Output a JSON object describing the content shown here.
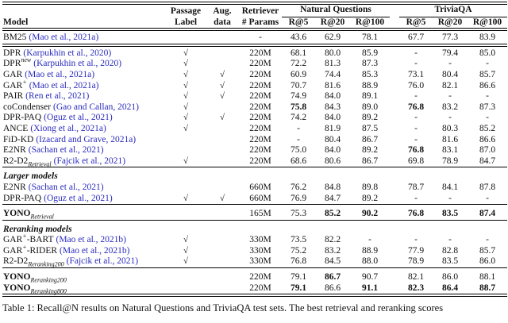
{
  "colors": {
    "citation_blue": "#2B2BBE",
    "background": "#FFFFFF",
    "text": "#111111",
    "rule": "#000000"
  },
  "table": {
    "check_glyph": "√",
    "header": {
      "model": "Model",
      "passage_l1": "Passage",
      "passage_l2": "Label",
      "aug_l1": "Aug.",
      "aug_l2": "data",
      "retriever_l1": "Retriever",
      "retriever_l2": "# Params",
      "group_nq": "Natural Questions",
      "group_tqa": "TriviaQA",
      "subcols": [
        "R@5",
        "R@20",
        "R@100"
      ]
    },
    "sections": [
      {
        "label": null,
        "rule_after": "double",
        "rows": [
          {
            "name": "BM25",
            "sup": "",
            "suffix": "",
            "sub": "",
            "cite": "(Mao et al., 2021a)",
            "name_bold": false,
            "passage": false,
            "aug": false,
            "params": "-",
            "scores": [
              "43.6",
              "62.9",
              "78.1",
              "67.7",
              "77.3",
              "83.9"
            ],
            "bold": [
              0,
              0,
              0,
              0,
              0,
              0
            ]
          }
        ]
      },
      {
        "label": null,
        "rule_after": "single",
        "rows": [
          {
            "name": "DPR",
            "sup": "",
            "suffix": "",
            "sub": "",
            "cite": "(Karpukhin et al., 2020)",
            "name_bold": false,
            "passage": true,
            "aug": false,
            "params": "220M",
            "scores": [
              "68.1",
              "80.0",
              "85.9",
              "-",
              "79.4",
              "85.0"
            ],
            "bold": [
              0,
              0,
              0,
              0,
              0,
              0
            ]
          },
          {
            "name": "DPR",
            "sup": "new",
            "suffix": "",
            "sub": "",
            "cite": "(Karpukhin et al., 2020)",
            "name_bold": false,
            "passage": true,
            "aug": false,
            "params": "220M",
            "scores": [
              "72.2",
              "81.3",
              "87.3",
              "-",
              "-",
              "-"
            ],
            "bold": [
              0,
              0,
              0,
              0,
              0,
              0
            ]
          },
          {
            "name": "GAR",
            "sup": "",
            "suffix": "",
            "sub": "",
            "cite": "(Mao et al., 2021a)",
            "name_bold": false,
            "passage": true,
            "aug": true,
            "params": "220M",
            "scores": [
              "60.9",
              "74.4",
              "85.3",
              "73.1",
              "80.4",
              "85.7"
            ],
            "bold": [
              0,
              0,
              0,
              0,
              0,
              0
            ]
          },
          {
            "name": "GAR",
            "sup": "+",
            "suffix": "",
            "sub": "",
            "cite": "(Mao et al., 2021a)",
            "name_bold": false,
            "passage": true,
            "aug": true,
            "params": "220M",
            "scores": [
              "70.7",
              "81.6",
              "88.9",
              "76.0",
              "82.1",
              "86.6"
            ],
            "bold": [
              0,
              0,
              0,
              0,
              0,
              0
            ]
          },
          {
            "name": "PAIR",
            "sup": "",
            "suffix": "",
            "sub": "",
            "cite": "(Ren et al., 2021)",
            "name_bold": false,
            "passage": true,
            "aug": true,
            "params": "220M",
            "scores": [
              "74.9",
              "84.0",
              "89.1",
              "-",
              "-",
              "-"
            ],
            "bold": [
              0,
              0,
              0,
              0,
              0,
              0
            ]
          },
          {
            "name": "coCondenser",
            "sup": "",
            "suffix": "",
            "sub": "",
            "cite": "(Gao and Callan, 2021)",
            "name_bold": false,
            "passage": true,
            "aug": false,
            "params": "220M",
            "scores": [
              "75.8",
              "84.3",
              "89.0",
              "76.8",
              "83.2",
              "87.3"
            ],
            "bold": [
              1,
              0,
              0,
              1,
              0,
              0
            ]
          },
          {
            "name": "DPR-PAQ",
            "sup": "",
            "suffix": "",
            "sub": "",
            "cite": "(Oguz et al., 2021)",
            "name_bold": false,
            "passage": true,
            "aug": true,
            "params": "220M",
            "scores": [
              "74.2",
              "84.0",
              "89.2",
              "-",
              "-",
              "-"
            ],
            "bold": [
              0,
              0,
              0,
              0,
              0,
              0
            ]
          },
          {
            "name": "ANCE",
            "sup": "",
            "suffix": "",
            "sub": "",
            "cite": "(Xiong et al., 2021a)",
            "name_bold": false,
            "passage": true,
            "aug": false,
            "params": "220M",
            "scores": [
              "-",
              "81.9",
              "87.5",
              "-",
              "80.3",
              "85.2"
            ],
            "bold": [
              0,
              0,
              0,
              0,
              0,
              0
            ]
          },
          {
            "name": "FiD-KD",
            "sup": "",
            "suffix": "",
            "sub": "",
            "cite": "(Izacard and Grave, 2021a)",
            "name_bold": false,
            "passage": false,
            "aug": false,
            "params": "220M",
            "scores": [
              "-",
              "80.4",
              "86.7",
              "-",
              "81.6",
              "86.6"
            ],
            "bold": [
              0,
              0,
              0,
              0,
              0,
              0
            ]
          },
          {
            "name": "E2NR",
            "sup": "",
            "suffix": "",
            "sub": "",
            "cite": "(Sachan et al., 2021)",
            "name_bold": false,
            "passage": false,
            "aug": false,
            "params": "220M",
            "scores": [
              "75.0",
              "84.0",
              "89.2",
              "76.8",
              "83.1",
              "87.0"
            ],
            "bold": [
              0,
              0,
              0,
              1,
              0,
              0
            ]
          },
          {
            "name": "R2-D2",
            "sup": "",
            "suffix": "",
            "sub": "Retrieval",
            "cite": "(Fajcik et al., 2021)",
            "name_bold": false,
            "passage": true,
            "aug": false,
            "params": "220M",
            "scores": [
              "68.6",
              "80.6",
              "86.7",
              "69.8",
              "78.9",
              "84.7"
            ],
            "bold": [
              0,
              0,
              0,
              0,
              0,
              0
            ]
          }
        ]
      },
      {
        "label": "Larger models",
        "rule_after": "single",
        "rows": [
          {
            "name": "E2NR",
            "sup": "",
            "suffix": "",
            "sub": "",
            "cite": "(Sachan et al., 2021)",
            "name_bold": false,
            "passage": false,
            "aug": false,
            "params": "660M",
            "scores": [
              "76.2",
              "84.8",
              "89.8",
              "78.7",
              "84.1",
              "87.8"
            ],
            "bold": [
              0,
              0,
              0,
              0,
              0,
              0
            ]
          },
          {
            "name": "DPR-PAQ",
            "sup": "",
            "suffix": "",
            "sub": "",
            "cite": "(Oguz et al., 2021)",
            "name_bold": false,
            "passage": true,
            "aug": true,
            "params": "660M",
            "scores": [
              "76.9",
              "84.7",
              "89.2",
              "-",
              "-",
              "-"
            ],
            "bold": [
              0,
              0,
              0,
              0,
              0,
              0
            ]
          }
        ]
      },
      {
        "label": null,
        "rule_after": "single",
        "rows": [
          {
            "name": "YONO",
            "sup": "",
            "suffix": "",
            "sub": "Retrieval",
            "cite": "",
            "name_bold": true,
            "passage": false,
            "aug": false,
            "params": "165M",
            "scores": [
              "75.3",
              "85.2",
              "90.2",
              "76.8",
              "83.5",
              "87.4"
            ],
            "bold": [
              0,
              1,
              1,
              1,
              1,
              1
            ]
          }
        ]
      },
      {
        "label": "Reranking models",
        "rule_after": "single",
        "rows": [
          {
            "name": "GAR",
            "sup": "+",
            "suffix": "-BART",
            "sub": "",
            "cite": "(Mao et al., 2021b)",
            "name_bold": false,
            "passage": true,
            "aug": false,
            "params": "330M",
            "scores": [
              "73.5",
              "82.2",
              "-",
              "-",
              "-",
              "-"
            ],
            "bold": [
              0,
              0,
              0,
              0,
              0,
              0
            ]
          },
          {
            "name": "GAR",
            "sup": "+",
            "suffix": "-RIDER",
            "sub": "",
            "cite": "(Mao et al., 2021b)",
            "name_bold": false,
            "passage": true,
            "aug": false,
            "params": "330M",
            "scores": [
              "75.2",
              "83.2",
              "88.9",
              "77.9",
              "82.8",
              "85.7"
            ],
            "bold": [
              0,
              0,
              0,
              0,
              0,
              0
            ]
          },
          {
            "name": "R2-D2",
            "sup": "",
            "suffix": "",
            "sub": "Reranking200",
            "cite": "(Fajcik et al., 2021)",
            "name_bold": false,
            "passage": true,
            "aug": false,
            "params": "330M",
            "scores": [
              "76.8",
              "84.5",
              "88.0",
              "78.9",
              "83.5",
              "86.0"
            ],
            "bold": [
              0,
              0,
              0,
              0,
              0,
              0
            ]
          }
        ]
      },
      {
        "label": null,
        "rule_after": "double",
        "rows": [
          {
            "name": "YONO",
            "sup": "",
            "suffix": "",
            "sub": "Reranking200",
            "cite": "",
            "name_bold": true,
            "passage": false,
            "aug": false,
            "params": "220M",
            "scores": [
              "79.1",
              "86.7",
              "90.7",
              "82.1",
              "86.0",
              "88.1"
            ],
            "bold": [
              0,
              1,
              0,
              0,
              0,
              0
            ]
          },
          {
            "name": "YONO",
            "sup": "",
            "suffix": "",
            "sub": "Reranking800",
            "cite": "",
            "name_bold": true,
            "passage": false,
            "aug": false,
            "params": "220M",
            "scores": [
              "79.1",
              "86.6",
              "91.1",
              "82.3",
              "86.4",
              "88.7"
            ],
            "bold": [
              1,
              0,
              1,
              1,
              1,
              1
            ]
          }
        ]
      }
    ],
    "caption": "Table 1: Recall@N results on Natural Questions and TriviaQA test sets. The best retrieval and reranking scores"
  }
}
